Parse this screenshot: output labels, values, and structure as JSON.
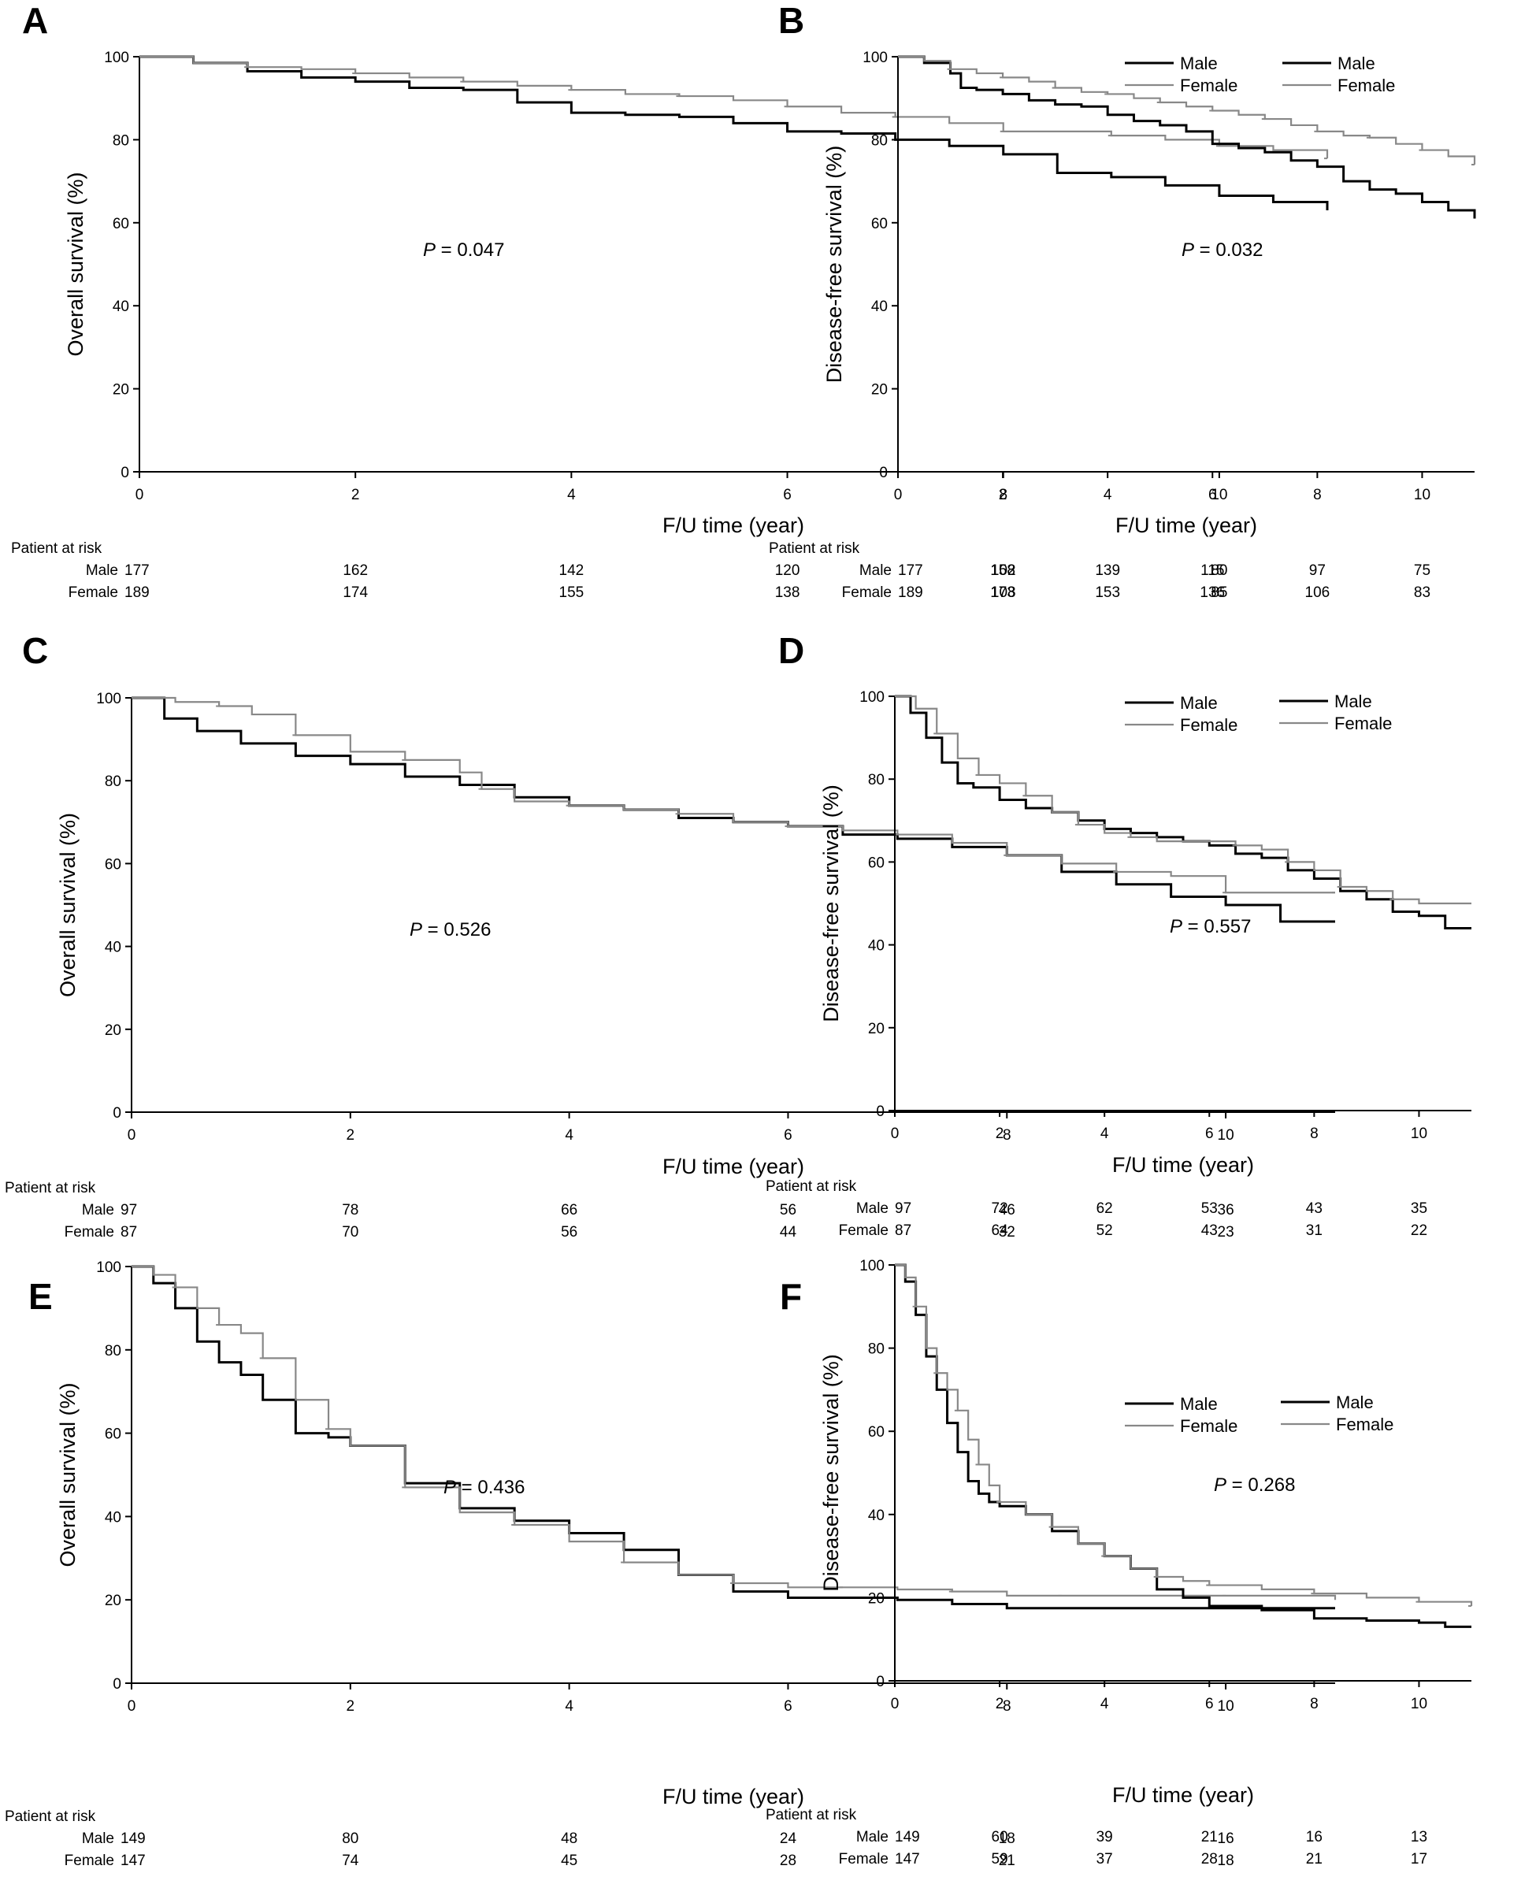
{
  "chart_data": [
    {
      "type": "line",
      "panel": "A",
      "ylabel": "Overall survival (%)",
      "xlabel": "F/U time (year)",
      "p_italic": "P",
      "p_value": " = 0.047",
      "xlim": [
        0,
        11
      ],
      "ylim": [
        0,
        100
      ],
      "xticks": [
        0,
        2,
        4,
        6,
        8,
        10
      ],
      "yticks": [
        0,
        20,
        40,
        60,
        80,
        100
      ],
      "legend_position": "top-right",
      "series": [
        {
          "name": "Male",
          "color": "#000000",
          "x": [
            0,
            0.5,
            1,
            1.5,
            2,
            2.5,
            3,
            3.5,
            4,
            4.5,
            5,
            5.5,
            6,
            6.5,
            7,
            7.5,
            8,
            8.5,
            9,
            9.5,
            10,
            10.5,
            11
          ],
          "y": [
            100,
            98.5,
            96.5,
            95,
            94,
            92.5,
            92,
            89,
            86.5,
            86,
            85.5,
            84,
            82,
            81.5,
            80,
            78.5,
            76.5,
            72,
            71,
            69,
            66.5,
            65,
            63
          ]
        },
        {
          "name": "Female",
          "color": "#888888",
          "x": [
            0,
            0.5,
            1,
            1.5,
            2,
            2.5,
            3,
            3.5,
            4,
            4.5,
            5,
            5.5,
            6,
            6.5,
            7,
            7.5,
            8,
            8.5,
            9,
            9.5,
            10,
            10.5,
            11
          ],
          "y": [
            100,
            98.5,
            97.5,
            97,
            96,
            95,
            94,
            93,
            92,
            91,
            90.5,
            89.5,
            88,
            86.5,
            85.5,
            84,
            82,
            82,
            81,
            80,
            78.5,
            77.5,
            75.5
          ]
        }
      ],
      "risk": {
        "title": "Patient at risk",
        "rows": [
          {
            "label": "Male",
            "values": [
              177,
              162,
              142,
              120,
              102,
              80
            ]
          },
          {
            "label": "Female",
            "values": [
              189,
              174,
              155,
              138,
              108,
              85
            ]
          }
        ]
      }
    },
    {
      "type": "line",
      "panel": "B",
      "ylabel": "Disease-free survival (%)",
      "xlabel": "F/U time (year)",
      "p_italic": "P",
      "p_value": " = 0.032",
      "xlim": [
        0,
        11
      ],
      "ylim": [
        0,
        100
      ],
      "xticks": [
        0,
        2,
        4,
        6,
        8,
        10
      ],
      "yticks": [
        0,
        20,
        40,
        60,
        80,
        100
      ],
      "legend_position": "top-right",
      "series": [
        {
          "name": "Male",
          "color": "#000000",
          "x": [
            0,
            0.5,
            1,
            1.2,
            1.5,
            2,
            2.5,
            3,
            3.5,
            4,
            4.5,
            5,
            5.5,
            6,
            6.5,
            7,
            7.5,
            8,
            8.5,
            9,
            9.5,
            10,
            10.5,
            11
          ],
          "y": [
            100,
            98.5,
            96,
            92.5,
            92,
            91,
            89.5,
            88.5,
            88,
            86,
            84.5,
            83.5,
            82,
            79,
            78,
            77,
            75,
            73.5,
            70,
            68,
            67,
            65,
            63,
            61
          ]
        },
        {
          "name": "Female",
          "color": "#888888",
          "x": [
            0,
            0.5,
            1,
            1.5,
            2,
            2.5,
            3,
            3.5,
            4,
            4.5,
            5,
            5.5,
            6,
            6.5,
            7,
            7.5,
            8,
            8.5,
            9,
            9.5,
            10,
            10.5,
            11
          ],
          "y": [
            100,
            99,
            97,
            96,
            95,
            94,
            92.5,
            91.5,
            91,
            90,
            89,
            88,
            87,
            86,
            85,
            83.5,
            82,
            81,
            80.5,
            79,
            77.5,
            76,
            74
          ]
        }
      ],
      "risk": {
        "title": "Patient at risk",
        "rows": [
          {
            "label": "Male",
            "values": [
              177,
              158,
              139,
              115,
              97,
              75
            ]
          },
          {
            "label": "Female",
            "values": [
              189,
              173,
              153,
              136,
              106,
              83
            ]
          }
        ]
      }
    },
    {
      "type": "line",
      "panel": "C",
      "ylabel": "Overall survival (%)",
      "xlabel": "F/U time (year)",
      "p_italic": "P",
      "p_value": " = 0.526",
      "xlim": [
        0,
        11
      ],
      "ylim": [
        0,
        100
      ],
      "xticks": [
        0,
        2,
        4,
        6,
        8,
        10
      ],
      "yticks": [
        0,
        20,
        40,
        60,
        80,
        100
      ],
      "legend_position": "top-right",
      "series": [
        {
          "name": "Male",
          "color": "#000000",
          "x": [
            0,
            0.3,
            0.6,
            1,
            1.5,
            2,
            2.5,
            3,
            3.5,
            4,
            4.5,
            5,
            5.5,
            6,
            6.5,
            7,
            7.5,
            8,
            8.5,
            9,
            9.5,
            10,
            10.5,
            11
          ],
          "y": [
            100,
            95,
            92,
            89,
            86,
            84,
            81,
            79,
            76,
            74,
            73,
            71,
            70,
            69,
            67,
            66,
            64,
            62,
            58,
            55,
            52,
            50,
            46,
            46
          ]
        },
        {
          "name": "Female",
          "color": "#888888",
          "x": [
            0,
            0.4,
            0.8,
            1.1,
            1.5,
            2,
            2.5,
            3,
            3.2,
            3.5,
            4,
            4.5,
            5,
            5.5,
            6,
            6.5,
            7,
            7.5,
            8,
            8.5,
            9,
            9.5,
            10,
            10.5,
            11
          ],
          "y": [
            100,
            99,
            98,
            96,
            91,
            87,
            85,
            82,
            78,
            75,
            74,
            73,
            72,
            70,
            69,
            68,
            67,
            65,
            62,
            60,
            58,
            57,
            53,
            53,
            53
          ]
        }
      ],
      "risk": {
        "title": "Patient at risk",
        "rows": [
          {
            "label": "Male",
            "values": [
              97,
              78,
              66,
              56,
              46,
              36
            ]
          },
          {
            "label": "Female",
            "values": [
              87,
              70,
              56,
              44,
              32,
              23
            ]
          }
        ]
      }
    },
    {
      "type": "line",
      "panel": "D",
      "ylabel": "Disease-free survival (%)",
      "xlabel": "F/U time (year)",
      "p_italic": "P",
      "p_value": " = 0.557",
      "xlim": [
        0,
        11
      ],
      "ylim": [
        0,
        100
      ],
      "xticks": [
        0,
        2,
        4,
        6,
        8,
        10
      ],
      "yticks": [
        0,
        20,
        40,
        60,
        80,
        100
      ],
      "legend_position": "top-right",
      "series": [
        {
          "name": "Male",
          "color": "#000000",
          "x": [
            0,
            0.3,
            0.6,
            0.9,
            1.2,
            1.5,
            2,
            2.5,
            3,
            3.5,
            4,
            4.5,
            5,
            5.5,
            6,
            6.5,
            7,
            7.5,
            8,
            8.5,
            9,
            9.5,
            10,
            10.5,
            11
          ],
          "y": [
            100,
            96,
            90,
            84,
            79,
            78,
            75,
            73,
            72,
            70,
            68,
            67,
            66,
            65,
            64,
            62,
            61,
            58,
            56,
            53,
            51,
            48,
            47,
            44,
            44
          ]
        },
        {
          "name": "Female",
          "color": "#888888",
          "x": [
            0,
            0.4,
            0.8,
            1.2,
            1.6,
            2,
            2.5,
            3,
            3.5,
            4,
            4.5,
            5,
            5.5,
            6,
            6.5,
            7,
            7.5,
            8,
            8.5,
            9,
            9.5,
            10,
            10.5,
            11
          ],
          "y": [
            100,
            97,
            91,
            85,
            81,
            79,
            76,
            72,
            69,
            67,
            66,
            65,
            65,
            65,
            64,
            63,
            60,
            58,
            54,
            53,
            51,
            50,
            50,
            50
          ]
        }
      ],
      "risk": {
        "title": "Patient at risk",
        "rows": [
          {
            "label": "Male",
            "values": [
              97,
              72,
              62,
              53,
              43,
              35
            ]
          },
          {
            "label": "Female",
            "values": [
              87,
              64,
              52,
              43,
              31,
              22
            ]
          }
        ]
      }
    },
    {
      "type": "line",
      "panel": "E",
      "ylabel": "Overall survival (%)",
      "xlabel": "F/U time (year)",
      "p_italic": "P",
      "p_value": " = 0.436",
      "xlim": [
        0,
        11
      ],
      "ylim": [
        0,
        100
      ],
      "xticks": [
        0,
        2,
        4,
        6,
        8,
        10
      ],
      "yticks": [
        0,
        20,
        40,
        60,
        80,
        100
      ],
      "legend_position": "top-right",
      "series": [
        {
          "name": "Male",
          "color": "#000000",
          "x": [
            0,
            0.2,
            0.4,
            0.6,
            0.8,
            1,
            1.2,
            1.5,
            1.8,
            2,
            2.5,
            3,
            3.5,
            4,
            4.5,
            5,
            5.5,
            6,
            6.5,
            7,
            7.5,
            8,
            8.5,
            9,
            10,
            11
          ],
          "y": [
            100,
            96,
            90,
            82,
            77,
            74,
            68,
            60,
            59,
            57,
            48,
            42,
            39,
            36,
            32,
            26,
            22,
            20.5,
            20.5,
            20,
            19,
            18,
            18,
            18,
            18,
            18
          ]
        },
        {
          "name": "Female",
          "color": "#888888",
          "x": [
            0,
            0.2,
            0.4,
            0.6,
            0.8,
            1,
            1.2,
            1.5,
            1.8,
            2,
            2.5,
            3,
            3.5,
            4,
            4.5,
            5,
            5.5,
            6,
            6.5,
            7,
            7.5,
            8,
            8.5,
            9,
            10,
            11
          ],
          "y": [
            100,
            98,
            95,
            90,
            86,
            84,
            78,
            68,
            61,
            57,
            47,
            41,
            38,
            34,
            29,
            26,
            24,
            23,
            23,
            22.5,
            22,
            21,
            21,
            21,
            21,
            20
          ]
        }
      ],
      "risk": {
        "title": "Patient at risk",
        "rows": [
          {
            "label": "Male",
            "values": [
              149,
              80,
              48,
              24,
              18,
              16
            ]
          },
          {
            "label": "Female",
            "values": [
              147,
              74,
              45,
              28,
              21,
              18
            ]
          }
        ]
      }
    },
    {
      "type": "line",
      "panel": "F",
      "ylabel": "Disease-free survival (%)",
      "xlabel": "F/U time (year)",
      "p_italic": "P",
      "p_value": " = 0.268",
      "xlim": [
        0,
        11
      ],
      "ylim": [
        0,
        100
      ],
      "xticks": [
        0,
        2,
        4,
        6,
        8,
        10
      ],
      "yticks": [
        0,
        20,
        40,
        60,
        80,
        100
      ],
      "legend_position": "top-right",
      "series": [
        {
          "name": "Male",
          "color": "#000000",
          "x": [
            0,
            0.2,
            0.4,
            0.6,
            0.8,
            1,
            1.2,
            1.4,
            1.6,
            1.8,
            2,
            2.5,
            3,
            3.5,
            4,
            4.5,
            5,
            5.5,
            6,
            7,
            8,
            9,
            10,
            10.5,
            11
          ],
          "y": [
            100,
            96,
            88,
            78,
            70,
            62,
            55,
            48,
            45,
            43,
            42,
            40,
            36,
            33,
            30,
            27,
            22,
            20,
            18,
            17,
            15,
            14.5,
            14,
            13,
            13
          ]
        },
        {
          "name": "Female",
          "color": "#888888",
          "x": [
            0,
            0.2,
            0.4,
            0.6,
            0.8,
            1,
            1.2,
            1.4,
            1.6,
            1.8,
            2,
            2.5,
            3,
            3.5,
            4,
            4.5,
            5,
            5.5,
            6,
            7,
            8,
            9,
            10,
            10.5,
            11
          ],
          "y": [
            100,
            97,
            90,
            80,
            74,
            70,
            65,
            58,
            52,
            47,
            43,
            40,
            37,
            33,
            30,
            27,
            25,
            24,
            23,
            22,
            21,
            20,
            19,
            19,
            18
          ]
        }
      ],
      "risk": {
        "title": "Patient at risk",
        "rows": [
          {
            "label": "Male",
            "values": [
              149,
              60,
              39,
              21,
              16,
              13
            ]
          },
          {
            "label": "Female",
            "values": [
              147,
              59,
              37,
              28,
              21,
              17
            ]
          }
        ]
      }
    }
  ]
}
